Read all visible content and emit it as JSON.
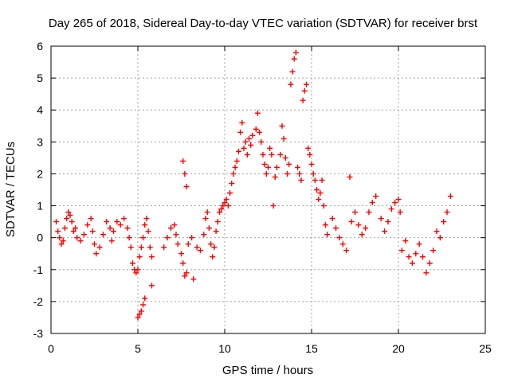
{
  "chart_data": {
    "type": "scatter",
    "title": "Day 265 of 2018, Sidereal Day-to-day VTEC variation (SDTVAR) for receiver brst",
    "xlabel": "GPS time / hours",
    "ylabel": "SDTVAR / TECUs",
    "xlim": [
      0,
      25
    ],
    "ylim": [
      -3,
      6
    ],
    "xticks": [
      "0",
      "5",
      "10",
      "15",
      "20",
      "25"
    ],
    "yticks": [
      "-3",
      "-2",
      "-1",
      "0",
      "1",
      "2",
      "3",
      "4",
      "5",
      "6"
    ],
    "grid": true,
    "marker": "+",
    "color": "#ff0000",
    "series": [
      {
        "name": "SDTVAR",
        "points": [
          [
            0.3,
            0.5
          ],
          [
            0.4,
            0.2
          ],
          [
            0.5,
            0.0
          ],
          [
            0.6,
            -0.2
          ],
          [
            0.7,
            -0.1
          ],
          [
            0.8,
            0.3
          ],
          [
            0.9,
            0.6
          ],
          [
            1.0,
            0.8
          ],
          [
            1.1,
            0.7
          ],
          [
            1.2,
            0.5
          ],
          [
            1.3,
            0.2
          ],
          [
            1.4,
            0.3
          ],
          [
            1.5,
            0.0
          ],
          [
            1.7,
            -0.1
          ],
          [
            1.9,
            0.1
          ],
          [
            2.1,
            0.4
          ],
          [
            2.3,
            0.6
          ],
          [
            2.4,
            0.2
          ],
          [
            2.5,
            -0.2
          ],
          [
            2.6,
            -0.5
          ],
          [
            2.8,
            -0.3
          ],
          [
            3.0,
            0.1
          ],
          [
            3.2,
            0.5
          ],
          [
            3.4,
            0.3
          ],
          [
            3.5,
            -0.1
          ],
          [
            3.6,
            0.2
          ],
          [
            3.8,
            0.5
          ],
          [
            4.0,
            0.4
          ],
          [
            4.2,
            0.6
          ],
          [
            4.4,
            0.3
          ],
          [
            4.5,
            0.0
          ],
          [
            4.6,
            -0.3
          ],
          [
            4.7,
            -0.8
          ],
          [
            4.8,
            -1.0
          ],
          [
            4.9,
            -1.1
          ],
          [
            5.0,
            -1.0
          ],
          [
            5.1,
            -0.6
          ],
          [
            5.2,
            -0.3
          ],
          [
            5.3,
            0.0
          ],
          [
            5.4,
            0.4
          ],
          [
            5.5,
            0.6
          ],
          [
            5.6,
            0.2
          ],
          [
            5.7,
            -0.3
          ],
          [
            5.8,
            -0.6
          ],
          [
            5.0,
            -2.5
          ],
          [
            5.1,
            -2.4
          ],
          [
            5.2,
            -2.3
          ],
          [
            5.3,
            -2.1
          ],
          [
            5.4,
            -1.9
          ],
          [
            5.8,
            -1.5
          ],
          [
            6.5,
            -0.3
          ],
          [
            6.7,
            0.0
          ],
          [
            6.9,
            0.3
          ],
          [
            7.1,
            0.4
          ],
          [
            7.2,
            0.1
          ],
          [
            7.3,
            -0.2
          ],
          [
            7.5,
            -0.5
          ],
          [
            7.6,
            -0.8
          ],
          [
            7.7,
            -1.2
          ],
          [
            7.8,
            -1.1
          ],
          [
            7.6,
            2.4
          ],
          [
            7.7,
            2.0
          ],
          [
            7.8,
            1.6
          ],
          [
            7.9,
            -0.2
          ],
          [
            8.1,
            0.0
          ],
          [
            8.2,
            -1.3
          ],
          [
            8.4,
            -0.3
          ],
          [
            8.6,
            -0.4
          ],
          [
            8.8,
            0.1
          ],
          [
            8.9,
            0.6
          ],
          [
            9.0,
            0.8
          ],
          [
            9.1,
            0.3
          ],
          [
            9.2,
            -0.2
          ],
          [
            9.3,
            -0.6
          ],
          [
            9.4,
            -0.3
          ],
          [
            9.5,
            0.2
          ],
          [
            9.6,
            0.5
          ],
          [
            9.7,
            0.8
          ],
          [
            9.8,
            0.9
          ],
          [
            9.9,
            1.0
          ],
          [
            10.0,
            1.1
          ],
          [
            10.1,
            1.2
          ],
          [
            10.2,
            1.0
          ],
          [
            10.3,
            1.4
          ],
          [
            10.4,
            1.7
          ],
          [
            10.5,
            2.0
          ],
          [
            10.6,
            2.2
          ],
          [
            10.7,
            2.4
          ],
          [
            10.8,
            2.7
          ],
          [
            10.9,
            3.3
          ],
          [
            11.0,
            3.6
          ],
          [
            11.1,
            2.8
          ],
          [
            11.2,
            3.0
          ],
          [
            11.3,
            2.6
          ],
          [
            11.4,
            3.1
          ],
          [
            11.5,
            2.9
          ],
          [
            11.6,
            3.2
          ],
          [
            11.8,
            3.4
          ],
          [
            11.9,
            3.9
          ],
          [
            12.0,
            3.3
          ],
          [
            12.1,
            3.0
          ],
          [
            12.2,
            2.6
          ],
          [
            12.3,
            2.3
          ],
          [
            12.4,
            2.0
          ],
          [
            12.5,
            2.2
          ],
          [
            12.6,
            2.8
          ],
          [
            12.7,
            2.6
          ],
          [
            12.8,
            1.0
          ],
          [
            12.9,
            1.9
          ],
          [
            13.0,
            2.2
          ],
          [
            13.2,
            2.6
          ],
          [
            13.3,
            3.5
          ],
          [
            13.4,
            3.1
          ],
          [
            13.5,
            2.5
          ],
          [
            13.6,
            2.0
          ],
          [
            13.7,
            2.3
          ],
          [
            13.8,
            4.8
          ],
          [
            13.9,
            5.2
          ],
          [
            14.0,
            5.6
          ],
          [
            14.1,
            5.8
          ],
          [
            14.2,
            2.2
          ],
          [
            14.3,
            2.0
          ],
          [
            14.4,
            1.8
          ],
          [
            14.5,
            4.3
          ],
          [
            14.6,
            4.6
          ],
          [
            14.7,
            4.8
          ],
          [
            14.8,
            2.8
          ],
          [
            14.9,
            2.6
          ],
          [
            15.0,
            2.3
          ],
          [
            15.1,
            2.0
          ],
          [
            15.2,
            1.8
          ],
          [
            15.3,
            1.5
          ],
          [
            15.4,
            1.2
          ],
          [
            15.5,
            1.4
          ],
          [
            15.6,
            1.8
          ],
          [
            15.7,
            1.0
          ],
          [
            15.8,
            0.4
          ],
          [
            15.9,
            0.1
          ],
          [
            16.2,
            0.6
          ],
          [
            16.4,
            0.3
          ],
          [
            16.6,
            0.0
          ],
          [
            16.8,
            -0.2
          ],
          [
            17.0,
            -0.4
          ],
          [
            17.2,
            1.9
          ],
          [
            17.3,
            0.5
          ],
          [
            17.5,
            0.8
          ],
          [
            17.7,
            0.4
          ],
          [
            17.9,
            0.1
          ],
          [
            18.1,
            0.3
          ],
          [
            18.3,
            0.8
          ],
          [
            18.5,
            1.1
          ],
          [
            18.7,
            1.3
          ],
          [
            19.0,
            0.6
          ],
          [
            19.2,
            0.2
          ],
          [
            19.4,
            0.5
          ],
          [
            19.6,
            0.9
          ],
          [
            19.8,
            1.1
          ],
          [
            20.0,
            1.2
          ],
          [
            20.1,
            0.8
          ],
          [
            20.2,
            -0.4
          ],
          [
            20.4,
            -0.1
          ],
          [
            20.6,
            -0.6
          ],
          [
            20.8,
            -0.8
          ],
          [
            21.0,
            -0.5
          ],
          [
            21.2,
            -0.2
          ],
          [
            21.4,
            -0.6
          ],
          [
            21.6,
            -1.1
          ],
          [
            21.8,
            -0.8
          ],
          [
            22.0,
            -0.4
          ],
          [
            22.2,
            0.2
          ],
          [
            22.4,
            0.0
          ],
          [
            22.6,
            0.5
          ],
          [
            22.8,
            0.8
          ],
          [
            23.0,
            1.3
          ]
        ]
      }
    ]
  }
}
